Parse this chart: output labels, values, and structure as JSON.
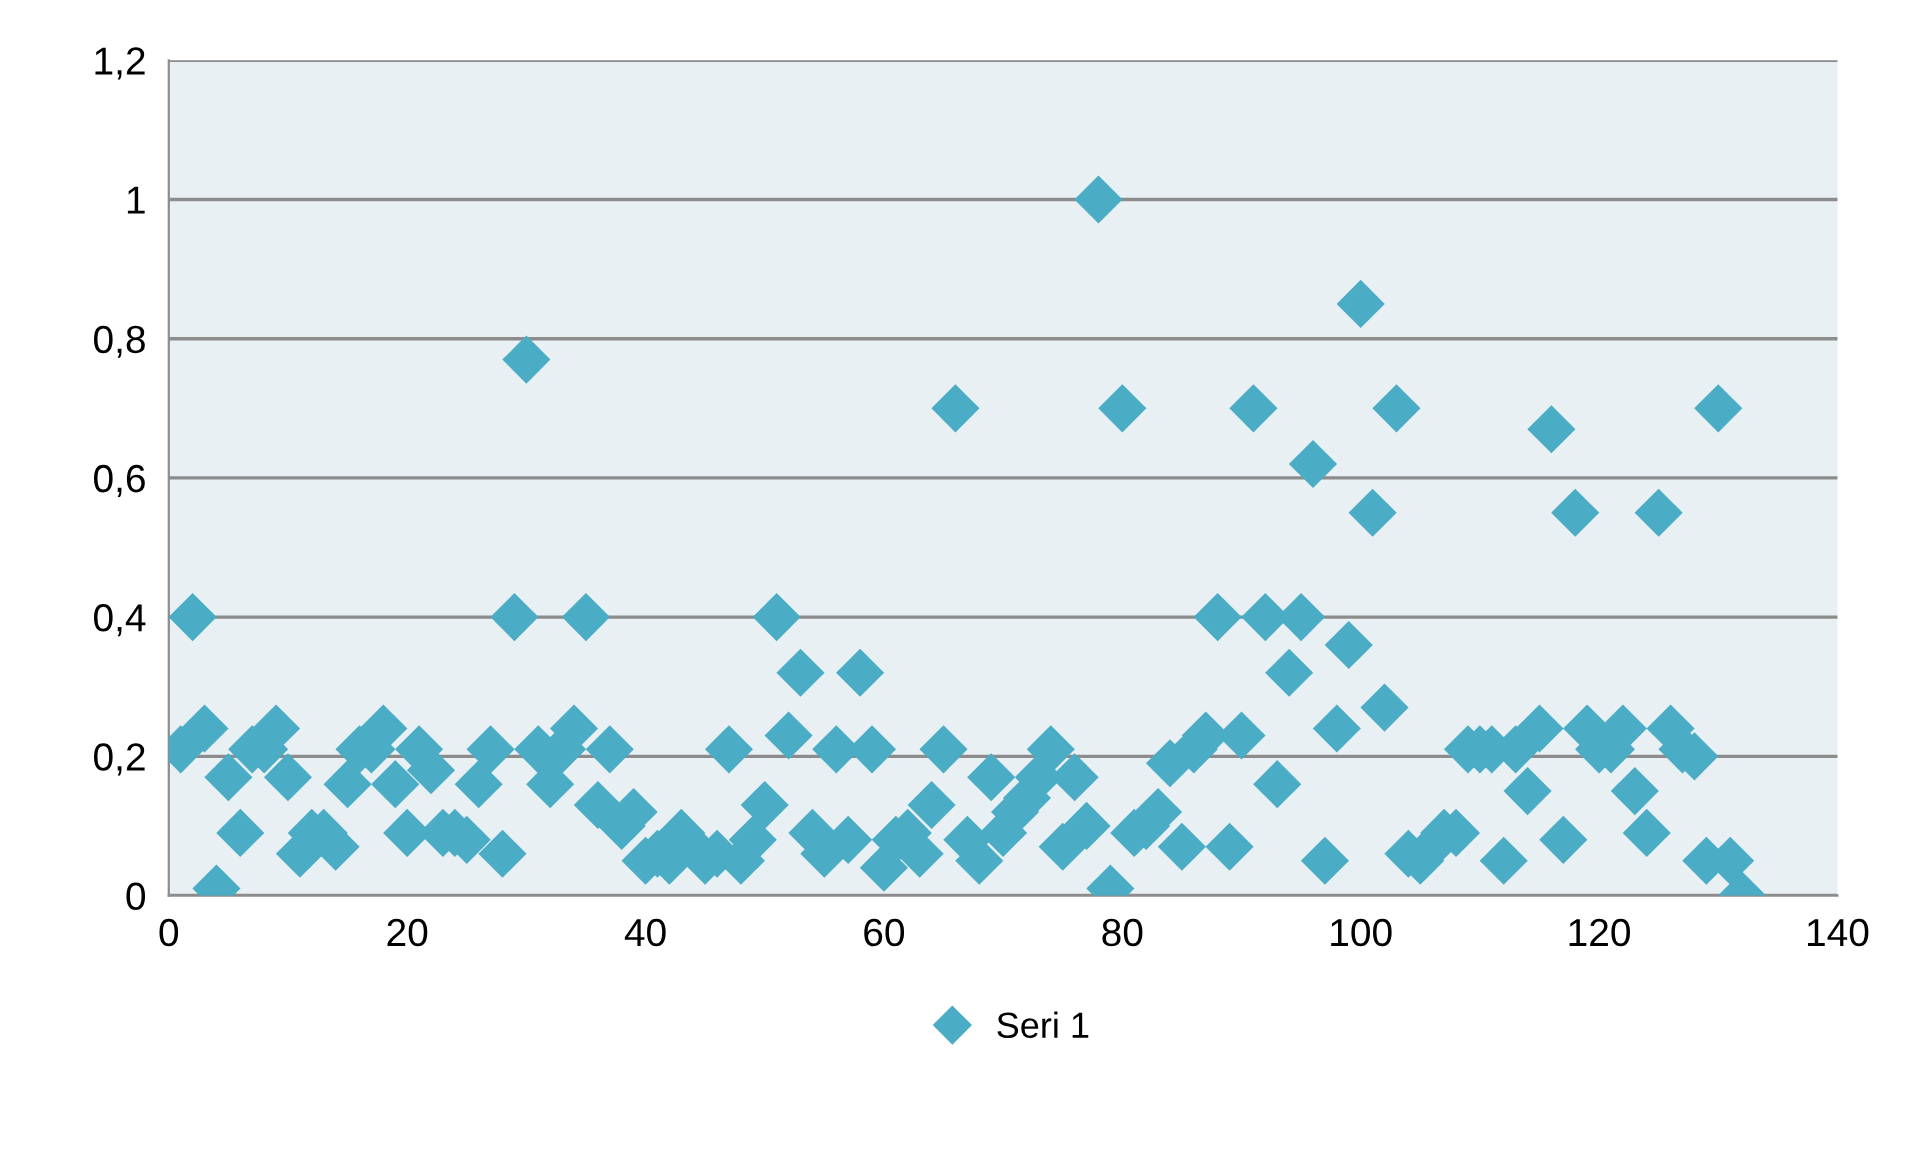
{
  "chart_data": {
    "type": "scatter",
    "x": [
      1,
      2,
      3,
      4,
      5,
      6,
      7,
      8,
      9,
      10,
      11,
      12,
      13,
      14,
      15,
      16,
      17,
      18,
      19,
      20,
      21,
      22,
      23,
      24,
      25,
      26,
      27,
      28,
      29,
      30,
      31,
      32,
      33,
      34,
      35,
      36,
      37,
      38,
      39,
      40,
      41,
      42,
      43,
      44,
      45,
      46,
      47,
      48,
      49,
      50,
      51,
      52,
      53,
      54,
      55,
      56,
      57,
      58,
      59,
      60,
      61,
      62,
      63,
      64,
      65,
      66,
      67,
      68,
      69,
      70,
      71,
      72,
      73,
      74,
      75,
      76,
      77,
      78,
      79,
      80,
      81,
      82,
      83,
      84,
      85,
      86,
      87,
      88,
      89,
      90,
      91,
      92,
      93,
      94,
      95,
      96,
      97,
      98,
      99,
      100,
      101,
      102,
      103,
      104,
      105,
      106,
      107,
      108,
      109,
      110,
      111,
      112,
      113,
      114,
      115,
      116,
      117,
      118,
      119,
      120,
      121,
      122,
      123,
      124,
      125,
      126,
      127,
      128,
      129,
      130,
      131,
      132
    ],
    "series": [
      {
        "name": "Seri 1",
        "color": "#4bacc6",
        "values": [
          0.21,
          0.4,
          0.24,
          0.01,
          0.17,
          0.09,
          0.21,
          0.21,
          0.24,
          0.17,
          0.06,
          0.09,
          0.09,
          0.07,
          0.16,
          0.21,
          0.21,
          0.24,
          0.16,
          0.09,
          0.21,
          0.18,
          0.09,
          0.09,
          0.08,
          0.16,
          0.21,
          0.06,
          0.4,
          0.77,
          0.21,
          0.16,
          0.21,
          0.24,
          0.4,
          0.13,
          0.21,
          0.1,
          0.12,
          0.05,
          0.06,
          0.05,
          0.09,
          0.07,
          0.05,
          0.06,
          0.21,
          0.05,
          0.08,
          0.13,
          0.4,
          0.23,
          0.32,
          0.09,
          0.06,
          0.21,
          0.08,
          0.32,
          0.21,
          0.04,
          0.08,
          0.09,
          0.06,
          0.13,
          0.21,
          0.7,
          0.08,
          0.05,
          0.17,
          0.09,
          0.12,
          0.14,
          0.17,
          0.21,
          0.07,
          0.17,
          0.1,
          1.0,
          0.01,
          0.7,
          0.09,
          0.1,
          0.12,
          0.19,
          0.07,
          0.21,
          0.23,
          0.4,
          0.07,
          0.23,
          0.7,
          0.4,
          0.16,
          0.32,
          0.4,
          0.62,
          0.05,
          0.24,
          0.36,
          0.85,
          0.55,
          0.27,
          0.7,
          0.06,
          0.05,
          0.07,
          0.09,
          0.09,
          0.21,
          0.21,
          0.21,
          0.05,
          0.21,
          0.15,
          0.24,
          0.67,
          0.08,
          0.55,
          0.24,
          0.21,
          0.21,
          0.24,
          0.15,
          0.09,
          0.55,
          0.24,
          0.21,
          0.2,
          0.05,
          0.7,
          0.05,
          0.0
        ]
      }
    ],
    "xlim": [
      0,
      140
    ],
    "xticks": [
      0,
      20,
      40,
      60,
      80,
      100,
      120,
      140
    ],
    "ylim": [
      0,
      1.2
    ],
    "yticks": [
      {
        "value": 0,
        "label": "0"
      },
      {
        "value": 0.2,
        "label": "0,2"
      },
      {
        "value": 0.4,
        "label": "0,4"
      },
      {
        "value": 0.6,
        "label": "0,6"
      },
      {
        "value": 0.8,
        "label": "0,8"
      },
      {
        "value": 1,
        "label": "1"
      },
      {
        "value": 1.2,
        "label": "1,2"
      }
    ],
    "grid": "y",
    "legend": "bottom",
    "marker": "diamond"
  }
}
